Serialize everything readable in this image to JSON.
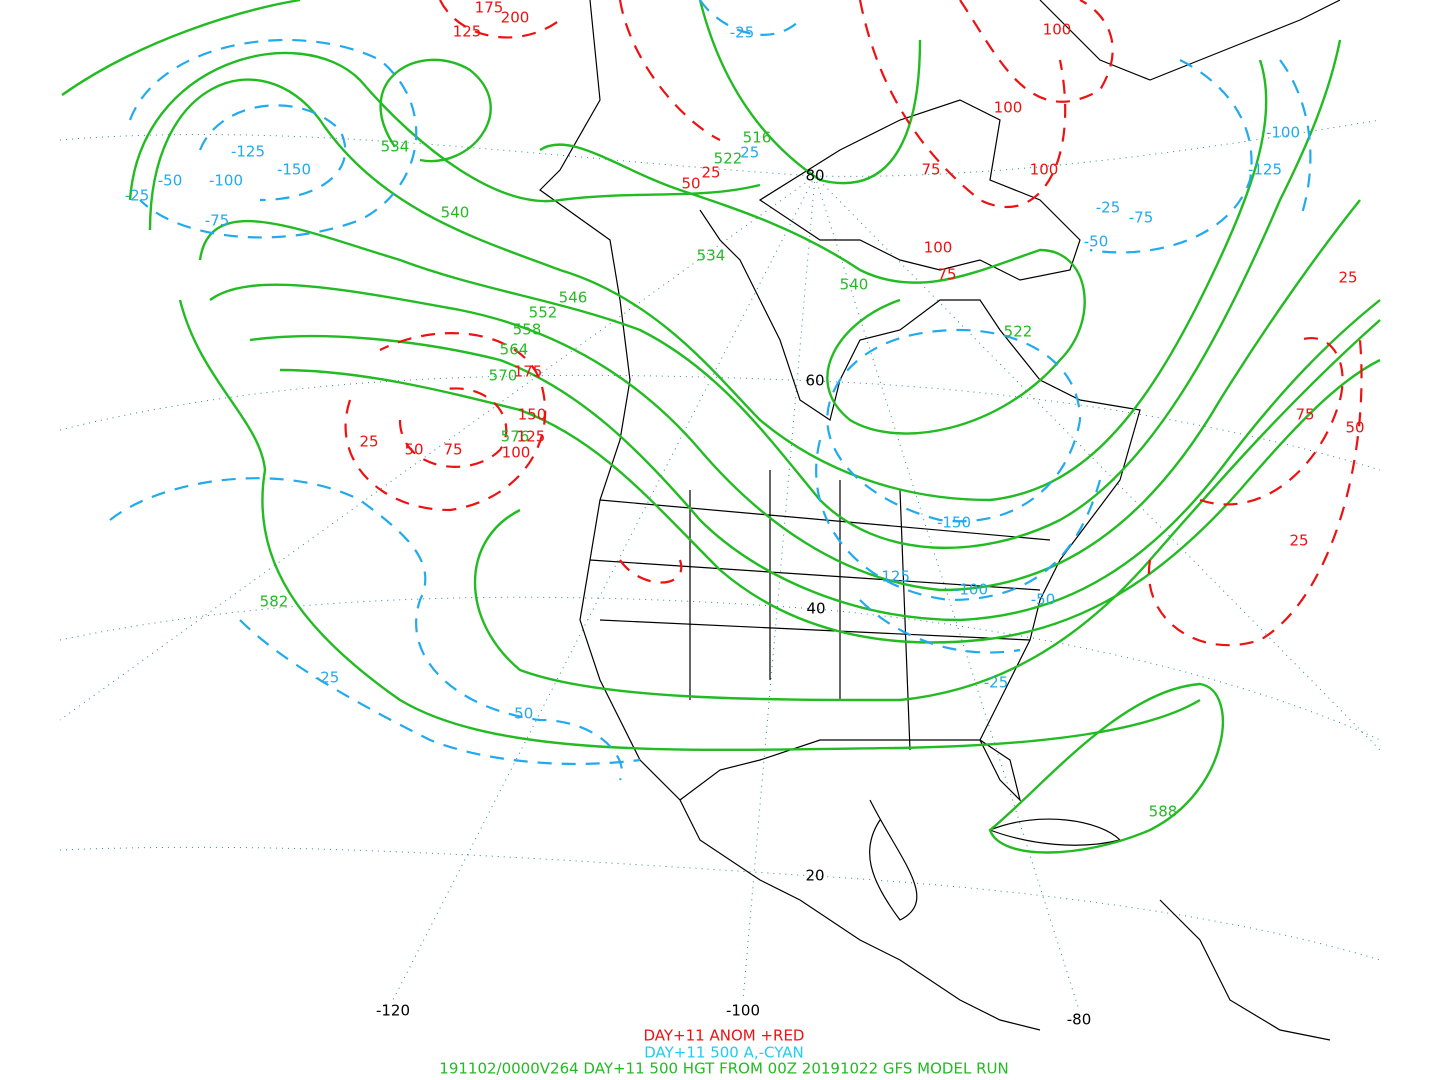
{
  "map": {
    "latitude_labels": [
      "80",
      "60",
      "40",
      "20"
    ],
    "longitude_labels": [
      "-120",
      "-100",
      "-80"
    ],
    "height_contour_labels": [
      "534",
      "540",
      "546",
      "552",
      "558",
      "564",
      "570",
      "576",
      "582",
      "588",
      "516",
      "522",
      "534",
      "540",
      "522"
    ],
    "positive_anomaly_labels": [
      "175",
      "200",
      "125",
      "100",
      "100",
      "100",
      "75",
      "50",
      "25",
      "100",
      "75",
      "175",
      "150",
      "125",
      "100",
      "75",
      "50",
      "25",
      "25",
      "75",
      "50",
      "25"
    ],
    "negative_anomaly_labels": [
      "-25",
      "-100",
      "-125",
      "-125",
      "-150",
      "-100",
      "-50",
      "-25",
      "-75",
      "-25",
      "-25",
      "-75",
      "-50",
      "-150",
      "-125",
      "-100",
      "-50",
      "-25",
      "-25",
      "-50"
    ]
  },
  "legend": {
    "anomaly_positive": "DAY+11 ANOM +RED",
    "anomaly_negative": "DAY+11 500 A,-CYAN",
    "run_info": "191102/0000V264 DAY+11 500 HGT FROM 00Z 20191022 GFS MODEL RUN"
  }
}
